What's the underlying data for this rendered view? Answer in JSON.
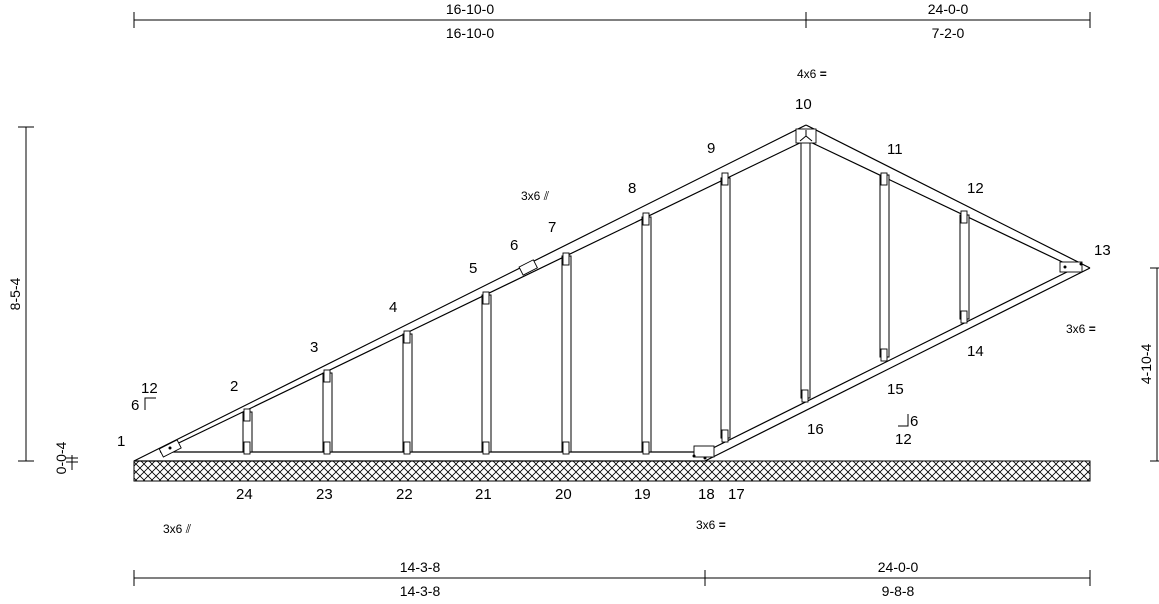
{
  "dimensions": {
    "top_left_upper": "16-10-0",
    "top_left_lower": "16-10-0",
    "top_right_upper": "24-0-0",
    "top_right_lower": "7-2-0",
    "bottom_left_upper": "14-3-8",
    "bottom_left_lower": "14-3-8",
    "bottom_right_upper": "24-0-0",
    "bottom_right_lower": "9-8-8",
    "left_height": "8-5-4",
    "left_heel": "0-0-4",
    "right_height": "4-10-4"
  },
  "pitch_left": {
    "rise": "6",
    "run": "12"
  },
  "pitch_right": {
    "rise": "6",
    "run": "12"
  },
  "plates": {
    "p10": "4x6",
    "p6": "3x6",
    "p13": "3x6",
    "p1": "3x6",
    "p18": "3x6"
  },
  "plate_marks": {
    "p10": "=",
    "p6": "⫽",
    "p13": "=",
    "p1": "⫽",
    "p18": "="
  },
  "joints": {
    "j1": "1",
    "j2": "2",
    "j3": "3",
    "j4": "4",
    "j5": "5",
    "j6": "6",
    "j7": "7",
    "j8": "8",
    "j9": "9",
    "j10": "10",
    "j11": "11",
    "j12": "12",
    "j13": "13",
    "j14": "14",
    "j15": "15",
    "j16": "16",
    "j17": "17",
    "j18": "18",
    "j19": "19",
    "j20": "20",
    "j21": "21",
    "j22": "22",
    "j23": "23",
    "j24": "24"
  }
}
